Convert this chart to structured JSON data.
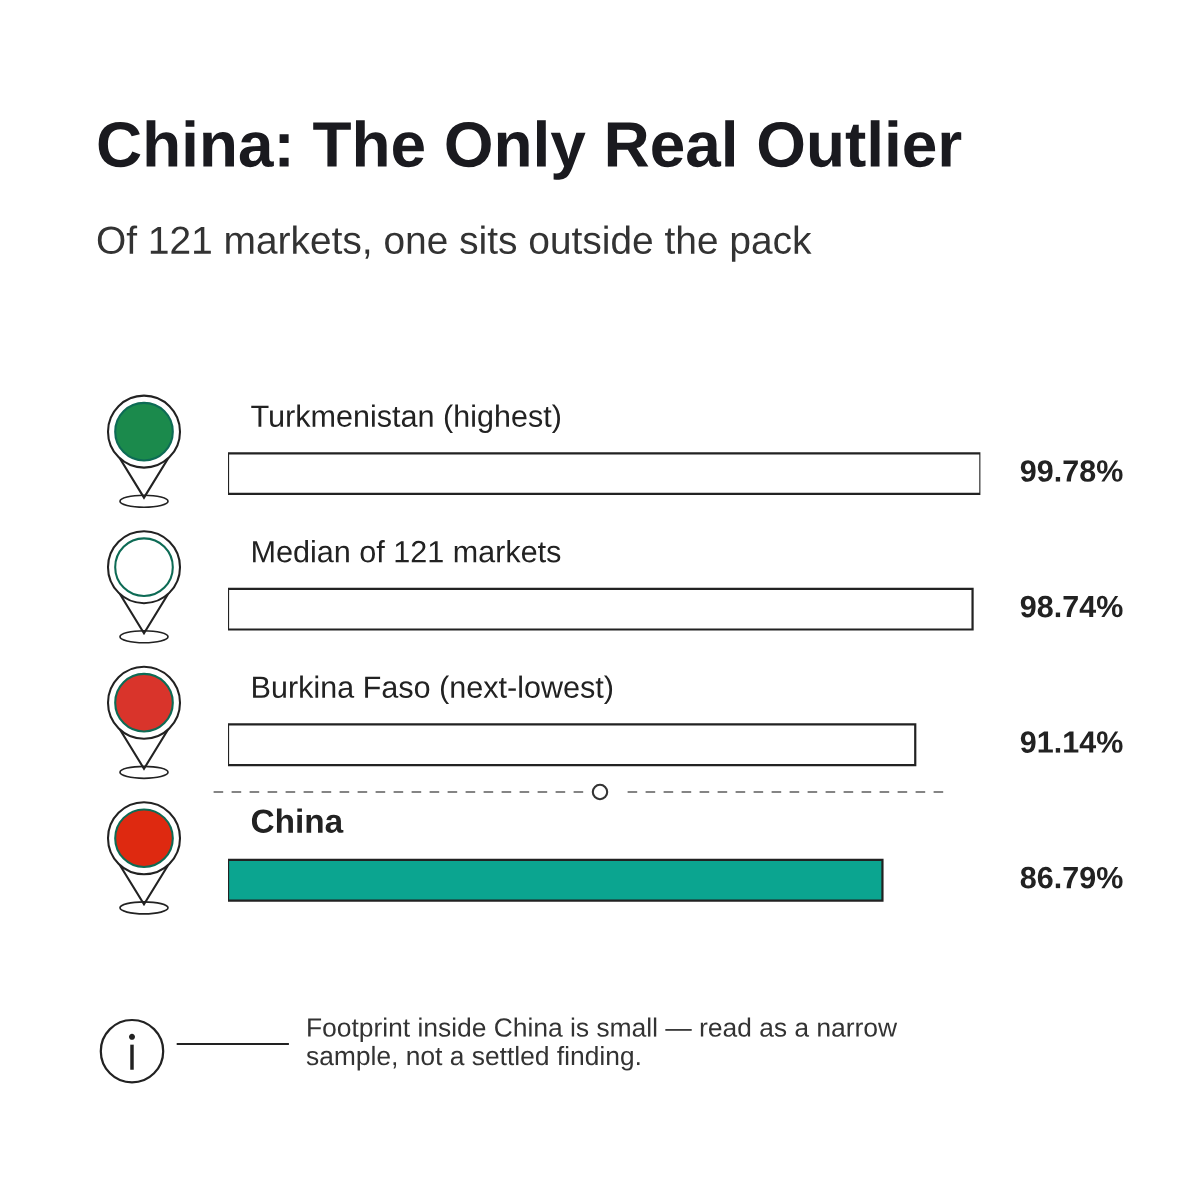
{
  "chart_data": {
    "type": "bar",
    "orientation": "horizontal",
    "title": "China: The Only Real Outlier",
    "subtitle": "Of 121 markets, one sits outside the pack",
    "categories": [
      "Turkmenistan (highest)",
      "Median of 121 markets",
      "Burkina Faso (next-lowest)",
      "China"
    ],
    "values": [
      99.78,
      98.74,
      91.14,
      86.79
    ],
    "colors": [
      "#ffffff",
      "#ffffff",
      "#ffffff",
      "#0ba590"
    ],
    "value_labels": [
      "99.78%",
      "98.74%",
      "91.14%",
      "86.79%"
    ],
    "annotations": [
      "Footprint inside China is small — read as a narrow sample, not a settled finding."
    ],
    "tick_labels": false
  }
}
